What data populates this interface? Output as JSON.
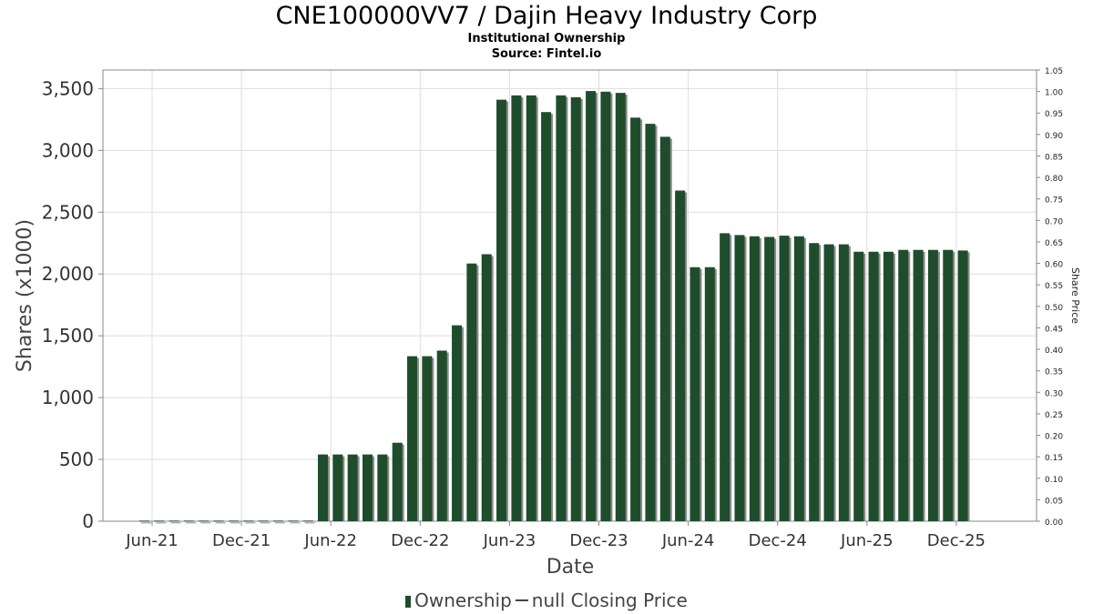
{
  "header": {
    "title": "CNE100000VV7 / Dajin Heavy Industry Corp",
    "subtitle": "Institutional Ownership",
    "source": "Source: Fintel.io"
  },
  "colors": {
    "bar": "#1f4d2b",
    "bar_shadow": "#8c8c8c",
    "grid": "#dddddd",
    "axis": "#888888"
  },
  "chart_data": {
    "type": "bar",
    "xlabel": "Date",
    "ylabel": "Shares (x1000)",
    "y2label": "Share Price",
    "ylim": [
      0,
      3650
    ],
    "y2lim": [
      0,
      1.05
    ],
    "yticks": [
      "0",
      "500",
      "1,000",
      "1,500",
      "2,000",
      "2,500",
      "3,000",
      "3,500"
    ],
    "y2ticks": [
      "0.00",
      "0.05",
      "0.10",
      "0.15",
      "0.20",
      "0.25",
      "0.30",
      "0.35",
      "0.40",
      "0.45",
      "0.50",
      "0.55",
      "0.60",
      "0.65",
      "0.70",
      "0.75",
      "0.80",
      "0.85",
      "0.90",
      "0.95",
      "1.00",
      "1.05"
    ],
    "xticks": [
      "Jun-21",
      "Dec-21",
      "Jun-22",
      "Dec-22",
      "Jun-23",
      "Dec-23",
      "Jun-24",
      "Dec-24",
      "Jun-25",
      "Dec-25"
    ],
    "grid": true,
    "legend_position": "bottom",
    "legend": [
      "Ownership",
      "null Closing Price"
    ],
    "series": [
      {
        "name": "Ownership",
        "values": [
          5,
          5,
          5,
          5,
          5,
          5,
          5,
          5,
          5,
          5,
          5,
          5,
          540,
          540,
          540,
          540,
          540,
          635,
          1335,
          1335,
          1380,
          1585,
          2085,
          2160,
          3410,
          3445,
          3445,
          3310,
          3445,
          3430,
          3480,
          3475,
          3465,
          3265,
          3215,
          3110,
          2675,
          2055,
          2055,
          2330,
          2315,
          2305,
          2300,
          2310,
          2305,
          2250,
          2240,
          2240,
          2180,
          2180,
          2180,
          2195,
          2195,
          2195,
          2195,
          2190
        ]
      }
    ]
  }
}
